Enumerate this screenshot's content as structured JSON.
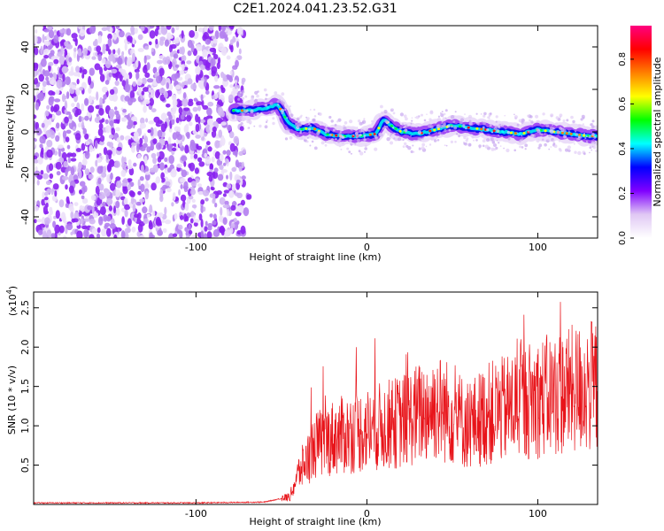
{
  "title": "C2E1.2024.041.23.52.G31",
  "chart_data": [
    {
      "type": "heatmap",
      "xlabel": "Height of straight line (km)",
      "ylabel": "Frequency (Hz)",
      "xlim": [
        -195,
        135
      ],
      "ylim": [
        -50,
        50
      ],
      "xticks": [
        -100,
        0,
        100
      ],
      "yticks": [
        -40,
        -20,
        0,
        20,
        40
      ],
      "colorbar": {
        "label": "Normalized spectral amplitude",
        "range": [
          0.0,
          0.95
        ],
        "ticks": [
          "0.0",
          "0.2",
          "0.4",
          "0.6",
          "0.8"
        ],
        "colors": [
          "#ffffff",
          "#e0c8f4",
          "#8000ff",
          "#0000ff",
          "#00ffff",
          "#00ff00",
          "#ffff00",
          "#ff8000",
          "#ff0000",
          "#ff0080"
        ]
      },
      "noise_region": {
        "x": [
          -195,
          -72
        ],
        "y": [
          -50,
          50
        ]
      },
      "ridge": {
        "x": [
          -78,
          -70,
          -60,
          -52,
          -46,
          -40,
          -32,
          -25,
          -15,
          -5,
          5,
          10,
          14,
          20,
          30,
          40,
          50,
          60,
          70,
          80,
          90,
          100,
          110,
          120,
          130,
          135
        ],
        "y": [
          10,
          10,
          11,
          13,
          4,
          1,
          2,
          -1,
          -2,
          -2,
          -1,
          6,
          3,
          0,
          -1,
          1,
          3,
          2,
          1,
          0,
          -1,
          1,
          0,
          -1,
          -2,
          -2
        ]
      }
    },
    {
      "type": "line",
      "xlabel": "Height of straight line (km)",
      "ylabel": "SNR (10 * v/v)",
      "multiplier_label": "(x10",
      "multiplier_exp": "4",
      "xlim": [
        -195,
        135
      ],
      "ylim": [
        0,
        2.7
      ],
      "xticks": [
        -100,
        0,
        100
      ],
      "yticks": [
        "0.5",
        "1.0",
        "1.5",
        "2.0",
        "2.5"
      ],
      "color": "#e8141a",
      "trend": {
        "x": [
          -195,
          -100,
          -60,
          -45,
          -40,
          -30,
          -20,
          -10,
          0,
          20,
          40,
          50,
          60,
          70,
          80,
          90,
          100,
          110,
          120,
          130,
          135
        ],
        "y": [
          0.02,
          0.02,
          0.03,
          0.1,
          0.4,
          0.75,
          0.85,
          0.9,
          0.95,
          1.05,
          1.25,
          1.15,
          1.0,
          1.15,
          1.2,
          1.3,
          1.35,
          1.4,
          1.45,
          1.5,
          1.5
        ]
      }
    }
  ]
}
